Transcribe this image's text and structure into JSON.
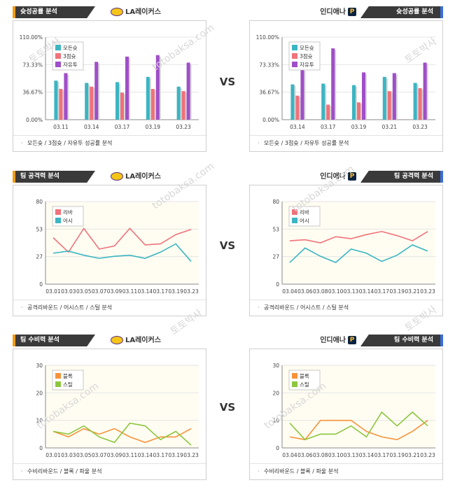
{
  "vs_label": "VS",
  "watermark_main": "토토박사",
  "watermark_url": "totobaksa.com",
  "rows": [
    {
      "left": {
        "title": "슛성공률 분석",
        "team": "LA레이커스",
        "logo": "lakers-logo",
        "footer": "모든슛 / 3점슛 / 자유투 성공률 분석",
        "chart_data": {
          "type": "bar",
          "categories": [
            "03.11",
            "03.14",
            "03.17",
            "03.19",
            "03.23"
          ],
          "yticks": [
            "110.00%",
            "73.33%",
            "36.67%",
            "0.00%"
          ],
          "ylim": [
            0,
            110
          ],
          "series": [
            {
              "name": "모든슛",
              "color": "#3bb5c2",
              "values": [
                52,
                49,
                50,
                57,
                44
              ]
            },
            {
              "name": "3점슛",
              "color": "#f0727a",
              "values": [
                41,
                44,
                36,
                41,
                38
              ]
            },
            {
              "name": "자유투",
              "color": "#a04ec9",
              "values": [
                62,
                77,
                84,
                86,
                76
              ]
            }
          ]
        }
      },
      "right": {
        "title": "슛성공률 분석",
        "team": "인디애나",
        "logo": "pacers-logo",
        "footer": "모든슛 / 3점슛 / 자유투 성공률 분석",
        "chart_data": {
          "type": "bar",
          "categories": [
            "03.14",
            "03.17",
            "03.19",
            "03.21",
            "03.23"
          ],
          "yticks": [
            "110.00%",
            "73.33%",
            "36.67%",
            "0.00%"
          ],
          "ylim": [
            0,
            110
          ],
          "series": [
            {
              "name": "모든슛",
              "color": "#3bb5c2",
              "values": [
                47,
                48,
                46,
                57,
                49
              ]
            },
            {
              "name": "3점슛",
              "color": "#f0727a",
              "values": [
                32,
                20,
                23,
                38,
                42
              ]
            },
            {
              "name": "자유투",
              "color": "#a04ec9",
              "values": [
                67,
                95,
                63,
                62,
                76
              ]
            }
          ]
        }
      }
    },
    {
      "left": {
        "title": "팀 공격력 분석",
        "team": "LA레이커스",
        "logo": "lakers-logo",
        "footer": "공격리바운드 / 어시스트 / 스틸 분석",
        "chart_data": {
          "type": "line",
          "categories": [
            "03.01",
            "03.03",
            "03.05",
            "03.07",
            "03.09",
            "03.11",
            "03.14",
            "03.17",
            "03.19",
            "03.23"
          ],
          "yticks": [
            "80",
            "53",
            "27",
            "0"
          ],
          "ylim": [
            0,
            80
          ],
          "series": [
            {
              "name": "리바",
              "color": "#f0727a",
              "values": [
                45,
                31,
                54,
                34,
                37,
                54,
                38,
                39,
                48,
                53
              ]
            },
            {
              "name": "어시",
              "color": "#3bb5c2",
              "values": [
                30,
                32,
                28,
                25,
                27,
                28,
                25,
                31,
                39,
                22
              ]
            }
          ]
        }
      },
      "right": {
        "title": "팀 공격력 분석",
        "team": "인디애나",
        "logo": "pacers-logo",
        "footer": "공격리바운드 / 어시스트 / 스틸 분석",
        "chart_data": {
          "type": "line",
          "categories": [
            "03.04",
            "03.06",
            "03.08",
            "03.10",
            "03.13",
            "03.14",
            "03.17",
            "03.19",
            "03.21",
            "03.23"
          ],
          "yticks": [
            "80",
            "53",
            "27",
            "0"
          ],
          "ylim": [
            0,
            80
          ],
          "series": [
            {
              "name": "리바",
              "color": "#f0727a",
              "values": [
                42,
                43,
                40,
                46,
                44,
                48,
                51,
                47,
                42,
                51
              ]
            },
            {
              "name": "어시",
              "color": "#3bb5c2",
              "values": [
                21,
                35,
                27,
                21,
                34,
                30,
                22,
                28,
                38,
                32
              ]
            }
          ]
        }
      }
    },
    {
      "left": {
        "title": "팀 수비력 분석",
        "team": "LA레이커스",
        "logo": "lakers-logo",
        "footer": "수비리바운드 / 블록 / 파울 분석",
        "chart_data": {
          "type": "line",
          "categories": [
            "03.01",
            "03.03",
            "03.05",
            "03.07",
            "03.09",
            "03.11",
            "03.14",
            "03.17",
            "03.19",
            "03.23"
          ],
          "yticks": [
            "30",
            "20",
            "10",
            "0"
          ],
          "ylim": [
            0,
            30
          ],
          "series": [
            {
              "name": "블록",
              "color": "#f7923a",
              "values": [
                6,
                4,
                7,
                5,
                7,
                4,
                2,
                4,
                4,
                7
              ]
            },
            {
              "name": "스틸",
              "color": "#8cc63f",
              "values": [
                6,
                5,
                8,
                4,
                2,
                9,
                8,
                3,
                6,
                1
              ]
            }
          ]
        }
      },
      "right": {
        "title": "팀 수비력 분석",
        "team": "인디애나",
        "logo": "pacers-logo",
        "footer": "수비리바운드 / 블록 / 파울 분석",
        "chart_data": {
          "type": "line",
          "categories": [
            "03.04",
            "03.06",
            "03.08",
            "03.10",
            "03.13",
            "03.14",
            "03.17",
            "03.19",
            "03.21",
            "03.23"
          ],
          "yticks": [
            "30",
            "20",
            "10",
            "0"
          ],
          "ylim": [
            0,
            30
          ],
          "series": [
            {
              "name": "블록",
              "color": "#f7923a",
              "values": [
                4,
                3,
                10,
                10,
                10,
                6,
                4,
                3,
                6,
                10
              ]
            },
            {
              "name": "스틸",
              "color": "#8cc63f",
              "values": [
                9,
                3,
                5,
                5,
                8,
                4,
                13,
                8,
                13,
                8
              ]
            }
          ]
        }
      }
    }
  ]
}
